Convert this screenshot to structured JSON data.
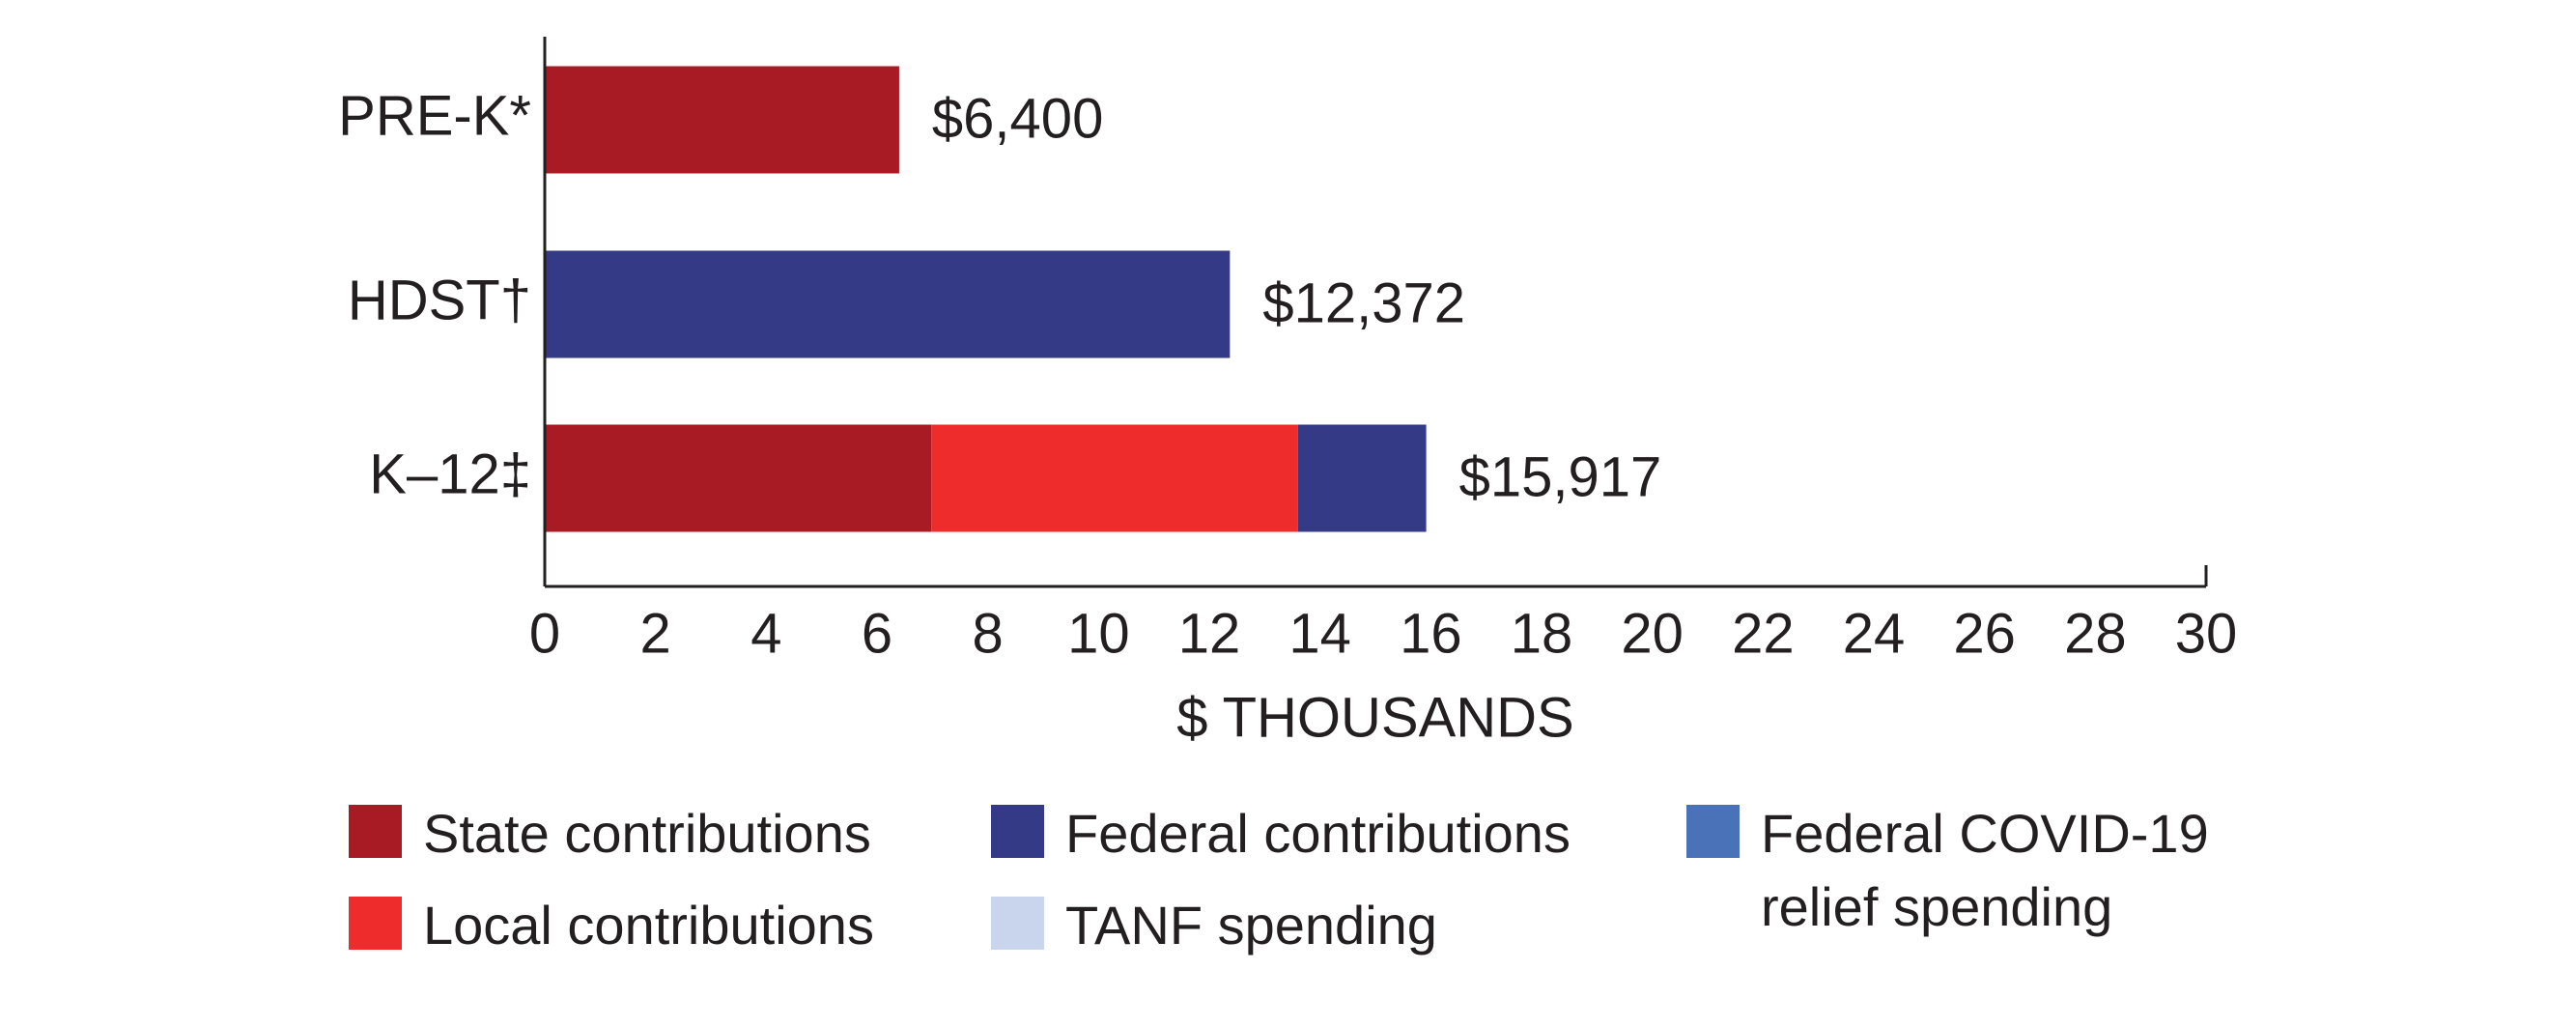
{
  "chart_data": {
    "type": "stacked-barh",
    "categories": [
      "PRE-K*",
      "HDST†",
      "K–12‡"
    ],
    "series": [
      {
        "name": "State contributions",
        "color": "#a91b24",
        "values": [
          6.4,
          null,
          6.98
        ]
      },
      {
        "name": "Local contributions",
        "color": "#ee2c2c",
        "values": [
          null,
          null,
          6.62
        ]
      },
      {
        "name": "Federal contributions",
        "color": "#343a85",
        "values": [
          null,
          12.372,
          2.317
        ]
      },
      {
        "name": "TANF spending",
        "color": "#c9d5ec",
        "values": [
          null,
          null,
          null
        ]
      },
      {
        "name": "Federal COVID-19 relief spending",
        "color": "#4a72b8",
        "values": [
          null,
          null,
          null
        ]
      }
    ],
    "totals": {
      "values": [
        6.4,
        12.372,
        15.917
      ],
      "value_labels": [
        "$6,400",
        "$12,372",
        "$15,917"
      ]
    },
    "xlabel": "$ THOUSANDS",
    "xlim": [
      0,
      30
    ],
    "xticks": [
      0,
      2,
      4,
      6,
      8,
      10,
      12,
      14,
      16,
      18,
      20,
      22,
      24,
      26,
      28,
      30
    ]
  }
}
